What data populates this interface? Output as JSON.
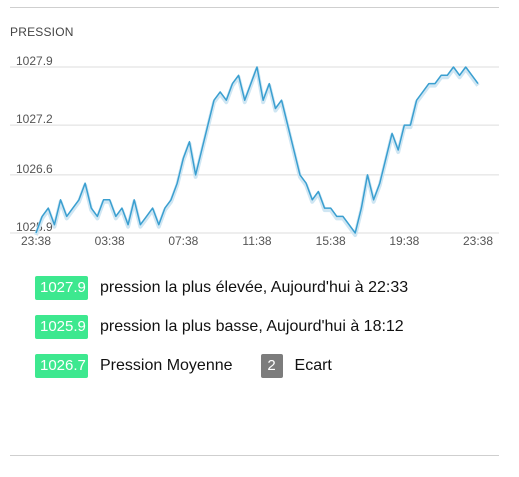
{
  "panel": {
    "title": "PRESSION"
  },
  "chart_data": {
    "type": "line",
    "title": "",
    "xlabel": "",
    "ylabel": "",
    "y_ticks": [
      "1027.9",
      "1027.2",
      "1026.6",
      "1025.9"
    ],
    "x_ticks": [
      "23:38",
      "03:38",
      "07:38",
      "11:38",
      "15:38",
      "19:38",
      "23:38"
    ],
    "ylim": [
      1025.9,
      1027.9
    ],
    "grid": true,
    "line_color": "#3a9fd0",
    "series": [
      {
        "name": "",
        "x_hours": [
          0,
          0.333,
          0.667,
          1,
          1.333,
          1.667,
          2,
          2.333,
          2.667,
          3,
          3.333,
          3.667,
          4,
          4.333,
          4.667,
          5,
          5.333,
          5.667,
          6,
          6.333,
          6.667,
          7,
          7.333,
          7.667,
          8,
          8.333,
          8.667,
          9,
          9.333,
          9.667,
          10,
          10.333,
          10.667,
          11,
          11.333,
          11.667,
          12,
          12.333,
          12.667,
          13,
          13.333,
          13.667,
          14,
          14.333,
          14.667,
          15,
          15.333,
          15.667,
          16,
          16.333,
          16.667,
          17,
          17.333,
          17.667,
          18,
          18.333,
          18.667,
          19,
          19.333,
          19.667,
          20,
          20.333,
          20.667,
          21,
          21.333,
          21.667,
          22,
          22.333,
          22.667,
          23,
          23.333,
          23.667,
          24
        ],
        "values": [
          1025.9,
          1026.1,
          1026.2,
          1026.0,
          1026.3,
          1026.1,
          1026.2,
          1026.3,
          1026.5,
          1026.2,
          1026.1,
          1026.3,
          1026.3,
          1026.1,
          1026.2,
          1026.0,
          1026.3,
          1026.0,
          1026.1,
          1026.2,
          1026.0,
          1026.2,
          1026.3,
          1026.5,
          1026.8,
          1027.0,
          1026.6,
          1026.9,
          1027.2,
          1027.5,
          1027.6,
          1027.5,
          1027.7,
          1027.8,
          1027.5,
          1027.7,
          1027.9,
          1027.5,
          1027.7,
          1027.4,
          1027.5,
          1027.2,
          1026.9,
          1026.6,
          1026.5,
          1026.3,
          1026.4,
          1026.2,
          1026.2,
          1026.1,
          1026.1,
          1026.0,
          1025.9,
          1026.2,
          1026.6,
          1026.3,
          1026.5,
          1026.8,
          1027.1,
          1026.9,
          1027.2,
          1027.2,
          1027.5,
          1027.6,
          1027.7,
          1027.7,
          1027.8,
          1027.8,
          1027.9,
          1027.8,
          1027.9,
          1027.8,
          1027.7
        ]
      }
    ]
  },
  "stats": {
    "max_value": "1027.9",
    "max_label": "pression la plus élevée, Aujourd'hui à 22:33",
    "min_value": "1025.9",
    "min_label": "pression la plus basse, Aujourd'hui à 18:12",
    "avg_value": "1026.7",
    "avg_label": "Pression Moyenne",
    "diff_value": "2",
    "diff_label": "Ecart"
  },
  "colors": {
    "badge_green": "#3de88f",
    "badge_grey": "#7c7c7c",
    "line": "#3a9fd0"
  }
}
